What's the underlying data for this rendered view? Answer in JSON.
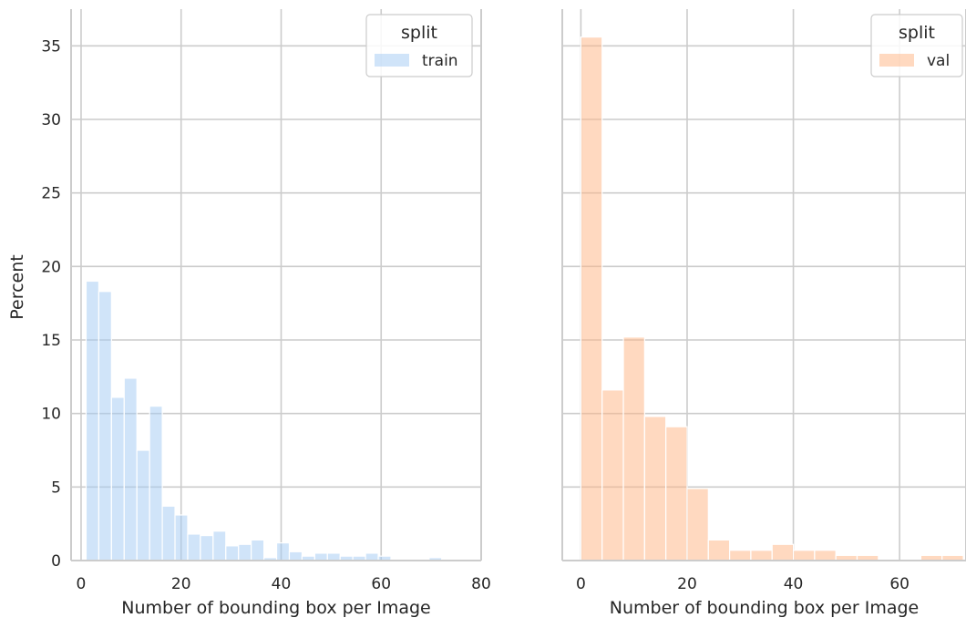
{
  "figure": {
    "ylabel": "Percent",
    "sharey": true
  },
  "chart_data": [
    {
      "type": "bar",
      "histogram": true,
      "xlabel": "Number of bounding box per Image",
      "ylabel": "Percent",
      "xlim": [
        -2,
        80
      ],
      "ylim": [
        0,
        37.5
      ],
      "xticks": [
        0,
        20,
        40,
        60,
        80
      ],
      "yticks": [
        0,
        5,
        10,
        15,
        20,
        25,
        30,
        35
      ],
      "grid": true,
      "color": "#a1c9f4",
      "legend": {
        "title": "split",
        "labels": [
          "train"
        ],
        "position": "upper right"
      },
      "bins": [
        {
          "x0": 1.0,
          "x1": 3.54,
          "value": 19.0
        },
        {
          "x0": 3.54,
          "x1": 6.08,
          "value": 18.3
        },
        {
          "x0": 6.08,
          "x1": 8.62,
          "value": 11.1
        },
        {
          "x0": 8.62,
          "x1": 11.16,
          "value": 12.4
        },
        {
          "x0": 11.16,
          "x1": 13.7,
          "value": 7.5
        },
        {
          "x0": 13.7,
          "x1": 16.24,
          "value": 10.5
        },
        {
          "x0": 16.24,
          "x1": 18.78,
          "value": 3.7
        },
        {
          "x0": 18.78,
          "x1": 21.32,
          "value": 3.1
        },
        {
          "x0": 21.32,
          "x1": 23.86,
          "value": 1.8
        },
        {
          "x0": 23.86,
          "x1": 26.4,
          "value": 1.7
        },
        {
          "x0": 26.4,
          "x1": 28.94,
          "value": 2.0
        },
        {
          "x0": 28.94,
          "x1": 31.48,
          "value": 1.0
        },
        {
          "x0": 31.48,
          "x1": 34.02,
          "value": 1.1
        },
        {
          "x0": 34.02,
          "x1": 36.56,
          "value": 1.4
        },
        {
          "x0": 36.56,
          "x1": 39.1,
          "value": 0.2
        },
        {
          "x0": 39.1,
          "x1": 41.64,
          "value": 1.2
        },
        {
          "x0": 41.64,
          "x1": 44.18,
          "value": 0.6
        },
        {
          "x0": 44.18,
          "x1": 46.72,
          "value": 0.3
        },
        {
          "x0": 46.72,
          "x1": 49.26,
          "value": 0.5
        },
        {
          "x0": 49.26,
          "x1": 51.8,
          "value": 0.5
        },
        {
          "x0": 51.8,
          "x1": 54.34,
          "value": 0.3
        },
        {
          "x0": 54.34,
          "x1": 56.88,
          "value": 0.3
        },
        {
          "x0": 56.88,
          "x1": 59.42,
          "value": 0.5
        },
        {
          "x0": 59.42,
          "x1": 61.96,
          "value": 0.3
        },
        {
          "x0": 61.96,
          "x1": 64.5,
          "value": 0.1
        },
        {
          "x0": 64.5,
          "x1": 67.04,
          "value": 0.1
        },
        {
          "x0": 67.04,
          "x1": 69.58,
          "value": 0.1
        },
        {
          "x0": 69.58,
          "x1": 72.12,
          "value": 0.2
        },
        {
          "x0": 72.12,
          "x1": 74.66,
          "value": 0.1
        },
        {
          "x0": 74.66,
          "x1": 77.2,
          "value": 0.1
        }
      ]
    },
    {
      "type": "bar",
      "histogram": true,
      "xlabel": "Number of bounding box per Image",
      "ylabel": "",
      "xlim": [
        -3.5,
        72.5
      ],
      "ylim": [
        0,
        37.5
      ],
      "xticks": [
        0,
        20,
        40,
        60
      ],
      "yticks": [
        0,
        5,
        10,
        15,
        20,
        25,
        30,
        35
      ],
      "grid": true,
      "color": "#ffb482",
      "legend": {
        "title": "split",
        "labels": [
          "val"
        ],
        "position": "upper right"
      },
      "bins": [
        {
          "x0": 0.0,
          "x1": 4.0,
          "value": 35.6
        },
        {
          "x0": 4.0,
          "x1": 8.0,
          "value": 11.6
        },
        {
          "x0": 8.0,
          "x1": 12.0,
          "value": 15.2
        },
        {
          "x0": 12.0,
          "x1": 16.0,
          "value": 9.8
        },
        {
          "x0": 16.0,
          "x1": 20.0,
          "value": 9.1
        },
        {
          "x0": 20.0,
          "x1": 24.0,
          "value": 4.9
        },
        {
          "x0": 24.0,
          "x1": 28.0,
          "value": 1.4
        },
        {
          "x0": 28.0,
          "x1": 32.0,
          "value": 0.7
        },
        {
          "x0": 32.0,
          "x1": 36.0,
          "value": 0.7
        },
        {
          "x0": 36.0,
          "x1": 40.0,
          "value": 1.1
        },
        {
          "x0": 40.0,
          "x1": 44.0,
          "value": 0.7
        },
        {
          "x0": 44.0,
          "x1": 48.0,
          "value": 0.7
        },
        {
          "x0": 48.0,
          "x1": 52.0,
          "value": 0.35
        },
        {
          "x0": 52.0,
          "x1": 56.0,
          "value": 0.35
        },
        {
          "x0": 56.0,
          "x1": 60.0,
          "value": 0.0
        },
        {
          "x0": 60.0,
          "x1": 64.0,
          "value": 0.0
        },
        {
          "x0": 64.0,
          "x1": 68.0,
          "value": 0.35
        },
        {
          "x0": 68.0,
          "x1": 72.0,
          "value": 0.35
        }
      ]
    }
  ]
}
